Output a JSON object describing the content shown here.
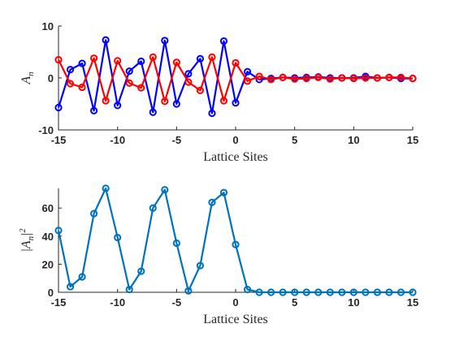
{
  "chart_data": [
    {
      "type": "line",
      "xlabel": "Lattice Sites",
      "ylabel": "A",
      "ylabel_sub": "n",
      "xlim": [
        -15,
        15
      ],
      "ylim": [
        -10,
        10
      ],
      "xticks": [
        -15,
        -10,
        -5,
        0,
        5,
        10,
        15
      ],
      "yticks": [
        -10,
        0,
        10
      ],
      "x": [
        -15,
        -14,
        -13,
        -12,
        -11,
        -10,
        -9,
        -8,
        -7,
        -6,
        -5,
        -4,
        -3,
        -2,
        -1,
        0,
        1,
        2,
        3,
        4,
        5,
        6,
        7,
        8,
        9,
        10,
        11,
        12,
        13,
        14,
        15
      ],
      "series": [
        {
          "color": "#0000ff",
          "values": [
            -5.7,
            1.6,
            2.8,
            -6.3,
            7.3,
            -5.3,
            1.3,
            3.2,
            -6.6,
            7.2,
            -5.0,
            0.8,
            3.7,
            -6.8,
            7.1,
            -4.8,
            1.2,
            -0.3,
            -0.1,
            0.1,
            0.0,
            0.1,
            0.2,
            0.0,
            0.0,
            0.0,
            0.3,
            0.0,
            0.1,
            -0.1,
            -0.1
          ]
        },
        {
          "color": "#ff0000",
          "values": [
            3.5,
            -1.1,
            -1.8,
            3.8,
            -4.4,
            3.3,
            -1.0,
            -1.9,
            4.0,
            -4.5,
            3.0,
            -0.8,
            -2.4,
            4.0,
            -4.4,
            2.9,
            -0.6,
            0.3,
            -0.3,
            0.1,
            -0.2,
            -0.1,
            0.1,
            -0.2,
            0.0,
            -0.1,
            0.0,
            0.0,
            0.1,
            0.1,
            -0.1
          ]
        }
      ]
    },
    {
      "type": "line",
      "xlabel": "Lattice Sites",
      "ylabel": "|A",
      "ylabel_sub": "n",
      "ylabel_tail": "|",
      "ylabel_sup": "2",
      "xlim": [
        -15,
        15
      ],
      "ylim": [
        0,
        74
      ],
      "xticks": [
        -15,
        -10,
        -5,
        0,
        5,
        10,
        15
      ],
      "yticks": [
        0,
        20,
        40,
        60
      ],
      "x": [
        -15,
        -14,
        -13,
        -12,
        -11,
        -10,
        -9,
        -8,
        -7,
        -6,
        -5,
        -4,
        -3,
        -2,
        -1,
        0,
        1,
        2,
        3,
        4,
        5,
        6,
        7,
        8,
        9,
        10,
        11,
        12,
        13,
        14,
        15
      ],
      "series": [
        {
          "color": "#0072bd",
          "values": [
            44,
            4,
            11,
            56,
            74,
            39,
            2,
            15,
            60,
            73,
            35,
            1,
            19,
            64,
            71,
            34,
            2,
            0,
            0,
            0,
            0,
            0,
            0,
            0,
            0,
            0,
            0,
            0,
            0,
            0,
            0
          ]
        }
      ]
    }
  ]
}
